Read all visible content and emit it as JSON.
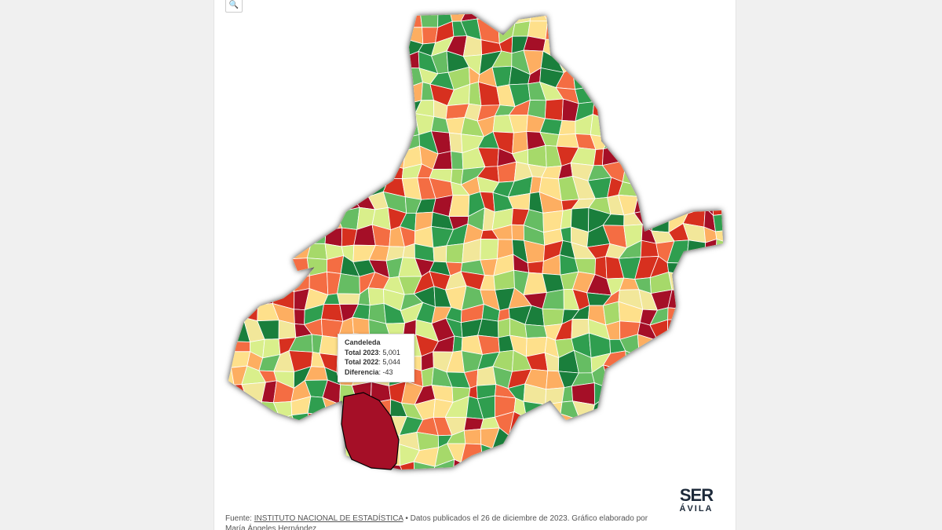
{
  "tooltip": {
    "name": "Candeleda",
    "rows": [
      {
        "label": "Total 2023",
        "value": "5,001"
      },
      {
        "label": "Total 2022",
        "value": "5,044"
      },
      {
        "label": "Diferencia",
        "value": "-43"
      }
    ]
  },
  "footer": {
    "prefix": "Fuente:",
    "link": "INSTITUTO NACIONAL DE ESTADÍSTICA",
    "text": "• Datos publicados el 26 de diciembre de 2023. Gráfico elaborado por María Ángeles Hernández"
  },
  "logo": {
    "brand": "SER",
    "city": "ÁVILA"
  }
}
